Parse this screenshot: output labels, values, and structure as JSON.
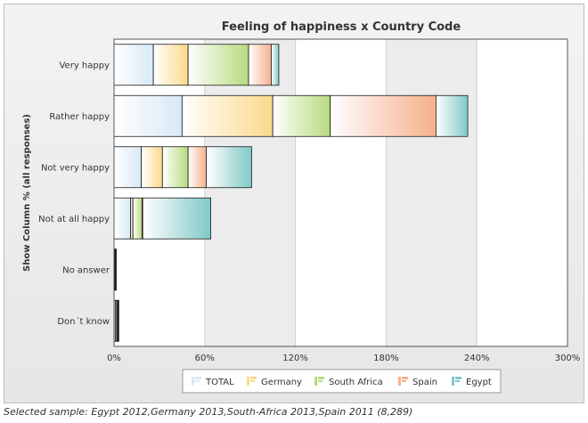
{
  "chart_data": {
    "type": "bar",
    "orientation": "horizontal",
    "stacked": true,
    "title": "Feeling of happiness x Country Code",
    "ylabel": "Show Column % (all responses)",
    "categories": [
      "Very happy",
      "Rather happy",
      "Not very happy",
      "Not at all happy",
      "No answer",
      "Don´t know"
    ],
    "x_ticks": [
      "0%",
      "60%",
      "120%",
      "180%",
      "240%",
      "300%"
    ],
    "xlim": [
      0,
      300
    ],
    "grid": true,
    "legend_position": "bottom",
    "series": [
      {
        "name": "TOTAL",
        "color": "#d7e9f7",
        "values": [
          26.0,
          45.0,
          18.0,
          11.0,
          0.5,
          1.0
        ]
      },
      {
        "name": "Germany",
        "color": "#fbd98a",
        "values": [
          23.0,
          60.0,
          14.0,
          1.5,
          0.3,
          0.8
        ]
      },
      {
        "name": "South Africa",
        "color": "#b8da7e",
        "values": [
          40.0,
          38.0,
          17.0,
          6.0,
          0.2,
          0.6
        ]
      },
      {
        "name": "Spain",
        "color": "#f6b08c",
        "values": [
          15.0,
          70.0,
          12.0,
          0.5,
          0.1,
          0.4
        ]
      },
      {
        "name": "Egypt",
        "color": "#7fc9c6",
        "values": [
          5.0,
          21.0,
          30.0,
          45.0,
          0.1,
          0.3
        ]
      }
    ]
  },
  "caption": "Selected sample: Egypt 2012,Germany 2013,South-Africa 2013,Spain 2011 (8,289)"
}
